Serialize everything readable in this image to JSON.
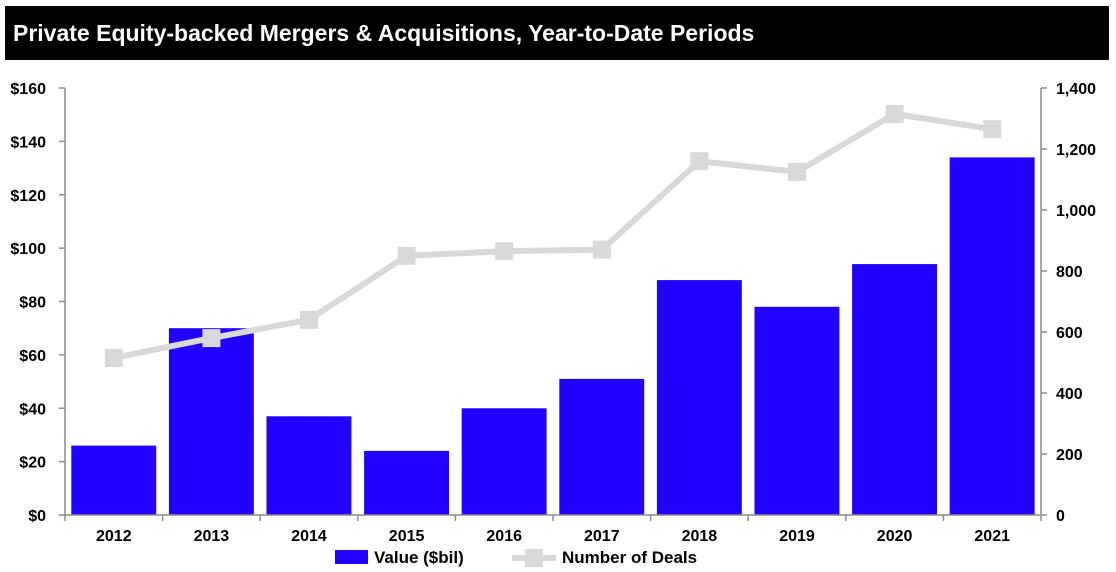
{
  "chart_data": {
    "type": "bar",
    "title": "Private Equity-backed Mergers & Acquisitions, Year-to-Date Periods",
    "categories": [
      "2012",
      "2013",
      "2014",
      "2015",
      "2016",
      "2017",
      "2018",
      "2019",
      "2020",
      "2021"
    ],
    "series": [
      {
        "name": "Value ($bil)",
        "type": "bar",
        "axis": "left",
        "color": "#2200ff",
        "values": [
          26,
          70,
          37,
          24,
          40,
          51,
          88,
          78,
          94,
          134
        ]
      },
      {
        "name": "Number of Deals",
        "type": "line",
        "axis": "right",
        "color": "#d9d9d9",
        "values": [
          515,
          580,
          640,
          850,
          865,
          870,
          1160,
          1125,
          1315,
          1265
        ]
      }
    ],
    "left_axis": {
      "ylim": [
        0,
        160
      ],
      "ticks": [
        0,
        20,
        40,
        60,
        80,
        100,
        120,
        140,
        160
      ],
      "tick_labels": [
        "$0",
        "$20",
        "$40",
        "$60",
        "$80",
        "$100",
        "$120",
        "$140",
        "$160"
      ]
    },
    "right_axis": {
      "ylim": [
        0,
        1400
      ],
      "ticks": [
        0,
        200,
        400,
        600,
        800,
        1000,
        1200,
        1400
      ],
      "tick_labels": [
        "0",
        "200",
        "400",
        "600",
        "800",
        "1,000",
        "1,200",
        "1,400"
      ]
    },
    "grid": false,
    "legend_position": "bottom-center"
  }
}
